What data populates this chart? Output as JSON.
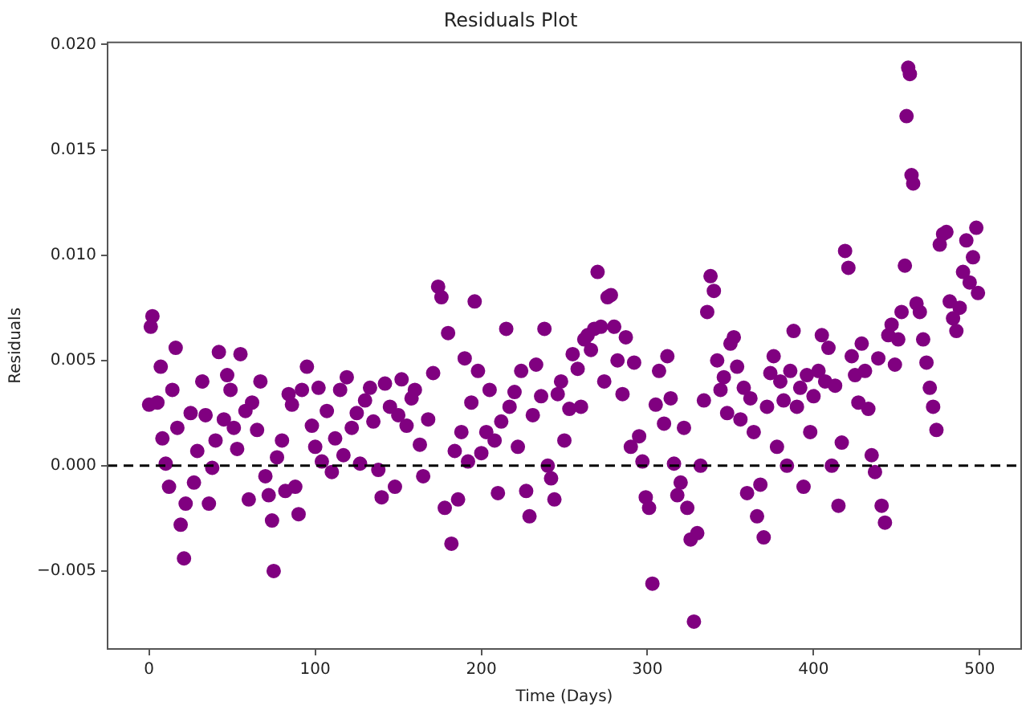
{
  "chart_data": {
    "type": "scatter",
    "title": "Residuals Plot",
    "xlabel": "Time (Days)",
    "ylabel": "Residuals",
    "x": [
      0,
      1,
      2,
      5,
      7,
      8,
      10,
      12,
      14,
      16,
      17,
      19,
      21,
      22,
      25,
      27,
      29,
      32,
      34,
      36,
      38,
      40,
      42,
      45,
      47,
      49,
      51,
      53,
      55,
      58,
      60,
      62,
      65,
      67,
      70,
      72,
      74,
      75,
      77,
      80,
      82,
      84,
      86,
      88,
      90,
      92,
      95,
      98,
      100,
      102,
      104,
      107,
      110,
      112,
      115,
      117,
      119,
      122,
      125,
      127,
      130,
      133,
      135,
      138,
      140,
      142,
      145,
      148,
      150,
      152,
      155,
      158,
      160,
      163,
      165,
      168,
      171,
      174,
      176,
      178,
      180,
      182,
      184,
      186,
      188,
      190,
      192,
      194,
      196,
      198,
      200,
      203,
      205,
      208,
      210,
      212,
      215,
      217,
      220,
      222,
      224,
      227,
      229,
      231,
      233,
      236,
      238,
      240,
      242,
      244,
      246,
      248,
      250,
      253,
      255,
      258,
      260,
      262,
      264,
      266,
      268,
      270,
      272,
      274,
      276,
      278,
      280,
      282,
      285,
      287,
      290,
      292,
      295,
      297,
      299,
      301,
      303,
      305,
      307,
      310,
      312,
      314,
      316,
      318,
      320,
      322,
      324,
      326,
      328,
      330,
      332,
      334,
      336,
      338,
      340,
      342,
      344,
      346,
      348,
      350,
      352,
      354,
      356,
      358,
      360,
      362,
      364,
      366,
      368,
      370,
      372,
      374,
      376,
      378,
      380,
      382,
      384,
      386,
      388,
      390,
      392,
      394,
      396,
      398,
      400,
      403,
      405,
      407,
      409,
      411,
      413,
      415,
      417,
      419,
      421,
      423,
      425,
      427,
      429,
      431,
      433,
      435,
      437,
      439,
      441,
      443,
      445,
      447,
      449,
      451,
      453,
      455,
      456,
      457,
      458,
      459,
      460,
      462,
      464,
      466,
      468,
      470,
      472,
      474,
      476,
      478,
      480,
      482,
      484,
      486,
      488,
      490,
      492,
      494,
      496,
      498,
      499
    ],
    "series": [
      {
        "color": "#800080",
        "values": [
          0.0029,
          0.0066,
          0.0071,
          0.003,
          0.0047,
          0.0013,
          0.0001,
          -0.001,
          0.0036,
          0.0056,
          0.0018,
          -0.0028,
          -0.0044,
          -0.0018,
          0.0025,
          -0.0008,
          0.0007,
          0.004,
          0.0024,
          -0.0018,
          -0.0001,
          0.0012,
          0.0054,
          0.0022,
          0.0043,
          0.0036,
          0.0018,
          0.0008,
          0.0053,
          0.0026,
          -0.0016,
          0.003,
          0.0017,
          0.004,
          -0.0005,
          -0.0014,
          -0.0026,
          -0.005,
          0.0004,
          0.0012,
          -0.0012,
          0.0034,
          0.0029,
          -0.001,
          -0.0023,
          0.0036,
          0.0047,
          0.0019,
          0.0009,
          0.0037,
          0.0002,
          0.0026,
          -0.0003,
          0.0013,
          0.0036,
          0.0005,
          0.0042,
          0.0018,
          0.0025,
          0.0001,
          0.0031,
          0.0037,
          0.0021,
          -0.0002,
          -0.0015,
          0.0039,
          0.0028,
          -0.001,
          0.0024,
          0.0041,
          0.0019,
          0.0032,
          0.0036,
          0.001,
          -0.0005,
          0.0022,
          0.0044,
          0.0085,
          0.008,
          -0.002,
          0.0063,
          -0.0037,
          0.0007,
          -0.0016,
          0.0016,
          0.0051,
          0.0002,
          0.003,
          0.0078,
          0.0045,
          0.0006,
          0.0016,
          0.0036,
          0.0012,
          -0.0013,
          0.0021,
          0.0065,
          0.0028,
          0.0035,
          0.0009,
          0.0045,
          -0.0012,
          -0.0024,
          0.0024,
          0.0048,
          0.0033,
          0.0065,
          0.0,
          -0.0006,
          -0.0016,
          0.0034,
          0.004,
          0.0012,
          0.0027,
          0.0053,
          0.0046,
          0.0028,
          0.006,
          0.0062,
          0.0055,
          0.0065,
          0.0092,
          0.0066,
          0.004,
          0.008,
          0.0081,
          0.0066,
          0.005,
          0.0034,
          0.0061,
          0.0009,
          0.0049,
          0.0014,
          0.0002,
          -0.0015,
          -0.002,
          -0.0056,
          0.0029,
          0.0045,
          0.002,
          0.0052,
          0.0032,
          0.0001,
          -0.0014,
          -0.0008,
          0.0018,
          -0.002,
          -0.0035,
          -0.0074,
          -0.0032,
          0.0,
          0.0031,
          0.0073,
          0.009,
          0.0083,
          0.005,
          0.0036,
          0.0042,
          0.0025,
          0.0058,
          0.0061,
          0.0047,
          0.0022,
          0.0037,
          -0.0013,
          0.0032,
          0.0016,
          -0.0024,
          -0.0009,
          -0.0034,
          0.0028,
          0.0044,
          0.0052,
          0.0009,
          0.004,
          0.0031,
          0.0,
          0.0045,
          0.0064,
          0.0028,
          0.0037,
          -0.001,
          0.0043,
          0.0016,
          0.0033,
          0.0045,
          0.0062,
          0.004,
          0.0056,
          0.0,
          0.0038,
          -0.0019,
          0.0011,
          0.0102,
          0.0094,
          0.0052,
          0.0043,
          0.003,
          0.0058,
          0.0045,
          0.0027,
          0.0005,
          -0.0003,
          0.0051,
          -0.0019,
          -0.0027,
          0.0062,
          0.0067,
          0.0048,
          0.006,
          0.0073,
          0.0095,
          0.0166,
          0.0189,
          0.0186,
          0.0138,
          0.0134,
          0.0077,
          0.0073,
          0.006,
          0.0049,
          0.0037,
          0.0028,
          0.0017,
          0.0105,
          0.011,
          0.0111,
          0.0078,
          0.007,
          0.0064,
          0.0075,
          0.0092,
          0.0107,
          0.0087,
          0.0099,
          0.0113,
          0.0082
        ]
      }
    ],
    "xlim": [
      -25,
      525
    ],
    "xticks": [
      0,
      100,
      200,
      300,
      400,
      500
    ],
    "ylim": [
      -0.0087,
      0.0201
    ],
    "yticks": [
      {
        "value": -0.005,
        "label": "−0.005"
      },
      {
        "value": 0,
        "label": "0.000"
      },
      {
        "value": 0.005,
        "label": "0.005"
      },
      {
        "value": 0.01,
        "label": "0.010"
      },
      {
        "value": 0.015,
        "label": "0.015"
      },
      {
        "value": 0.02,
        "label": "0.020"
      }
    ],
    "ref_lines": [
      {
        "axis": "y",
        "value": 0,
        "color": "#000000",
        "line_style": "dashed"
      }
    ],
    "marker": "circle",
    "grid": false,
    "legend": false
  }
}
